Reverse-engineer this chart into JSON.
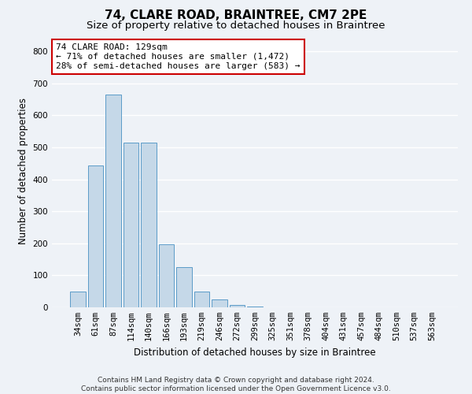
{
  "title": "74, CLARE ROAD, BRAINTREE, CM7 2PE",
  "subtitle": "Size of property relative to detached houses in Braintree",
  "xlabel": "Distribution of detached houses by size in Braintree",
  "ylabel": "Number of detached properties",
  "bar_labels": [
    "34sqm",
    "61sqm",
    "87sqm",
    "114sqm",
    "140sqm",
    "166sqm",
    "193sqm",
    "219sqm",
    "246sqm",
    "272sqm",
    "299sqm",
    "325sqm",
    "351sqm",
    "378sqm",
    "404sqm",
    "431sqm",
    "457sqm",
    "484sqm",
    "510sqm",
    "537sqm",
    "563sqm"
  ],
  "bar_values": [
    50,
    443,
    665,
    515,
    515,
    197,
    125,
    50,
    25,
    8,
    3,
    1,
    0,
    0,
    0,
    0,
    0,
    0,
    0,
    0,
    0
  ],
  "bar_color": "#c5d8e8",
  "bar_edgecolor": "#5b9bc8",
  "annotation_text": "74 CLARE ROAD: 129sqm\n← 71% of detached houses are smaller (1,472)\n28% of semi-detached houses are larger (583) →",
  "annotation_box_color": "#ffffff",
  "annotation_border_color": "#cc0000",
  "ylim": [
    0,
    850
  ],
  "yticks": [
    0,
    100,
    200,
    300,
    400,
    500,
    600,
    700,
    800
  ],
  "footer_text": "Contains HM Land Registry data © Crown copyright and database right 2024.\nContains public sector information licensed under the Open Government Licence v3.0.",
  "bg_color": "#eef2f7",
  "grid_color": "#ffffff",
  "title_fontsize": 11,
  "subtitle_fontsize": 9.5,
  "axis_label_fontsize": 8.5,
  "tick_fontsize": 7.5,
  "annotation_fontsize": 8,
  "footer_fontsize": 6.5
}
